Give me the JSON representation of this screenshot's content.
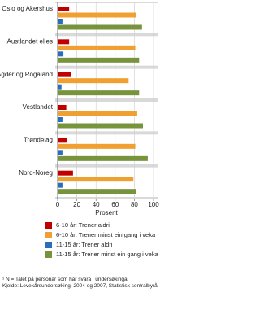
{
  "chart_data": {
    "type": "bar",
    "orientation": "horizontal",
    "categories": [
      "Oslo og Akershus",
      "Austlandet elles",
      "Agder og Rogaland",
      "Vestlandet",
      "Trøndelag",
      "Nord-Noreg"
    ],
    "series": [
      {
        "name": "6-10 år: Trener aldri",
        "color": "#c00000",
        "values": [
          12,
          12,
          14,
          9,
          10,
          16
        ]
      },
      {
        "name": "6-10 år: Trener minst ein gang i veka",
        "color": "#f0a030",
        "values": [
          82,
          81,
          74,
          83,
          81,
          79
        ]
      },
      {
        "name": "11-15 år: Trener aldri",
        "color": "#2a6ebb",
        "values": [
          5,
          6,
          4,
          5,
          5,
          5
        ]
      },
      {
        "name": "11-15 år: Trener minst ein gang i veka",
        "color": "#77933c",
        "values": [
          88,
          85,
          85,
          89,
          94,
          82
        ]
      }
    ],
    "xlabel": "Prosent",
    "xlim": [
      0,
      100
    ],
    "xticks": [
      0,
      20,
      40,
      60,
      80,
      100
    ],
    "grid": true,
    "footnotes": [
      "¹ N = Talet på personar som har svara i undersøkinga.",
      "Kjelde: Levekårsundersøking, 2004 og 2007, Statistisk sentralbyrå."
    ]
  }
}
